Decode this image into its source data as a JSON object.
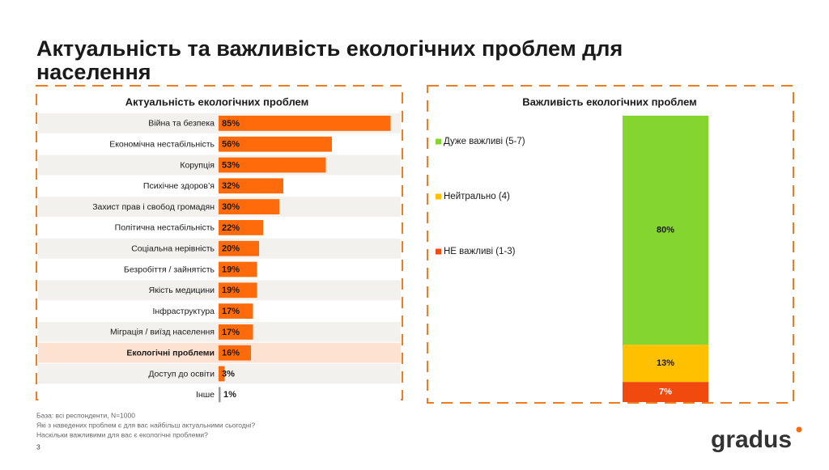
{
  "title": "Актуальність та важливість екологічних проблем для населення",
  "chart_data": [
    {
      "type": "hbar",
      "title": "Актуальність екологічних проблем",
      "categories": [
        "Війна та безпека",
        "Економічна нестабільність",
        "Корупція",
        "Психічне здоров’я",
        "Захист прав і свобод громадян",
        "Політична нестабільність",
        "Соціальна нерівність",
        "Безробіття / зайнятість",
        "Якість медицини",
        "Інфраструктура",
        "Міграція / виїзд населення",
        "Екологічні проблеми",
        "Доступ до освіти",
        "Інше"
      ],
      "values": [
        85,
        56,
        53,
        32,
        30,
        22,
        20,
        19,
        19,
        17,
        17,
        16,
        3,
        1
      ],
      "value_labels": [
        "85%",
        "56%",
        "53%",
        "32%",
        "30%",
        "22%",
        "20%",
        "19%",
        "19%",
        "17%",
        "17%",
        "16%",
        "3%",
        "1%"
      ],
      "color": "#ff6b0a",
      "highlight": 11
    },
    {
      "type": "stacked",
      "title": "Важливість екологічних проблем",
      "series": [
        {
          "name": "Дуже важливі (5-7)",
          "color": "#84d530",
          "values": [
            80
          ],
          "value_labels": [
            "80%"
          ]
        },
        {
          "name": "Нейтрально (4)",
          "color": "#ffc000",
          "values": [
            13
          ],
          "value_labels": [
            "13%"
          ]
        },
        {
          "name": "НЕ важливі (1-3)",
          "color": "#f04a0f",
          "values": [
            7
          ],
          "value_labels": [
            "7%"
          ]
        }
      ]
    }
  ],
  "notes": [
    "База: всі респонденти, N=1000",
    "Які з наведених проблем є для вас найбільш актуальними сьогодні?",
    "Наскільки важливими для вас є екологічні проблеми?"
  ],
  "page_number": "3",
  "logo": "gradus"
}
